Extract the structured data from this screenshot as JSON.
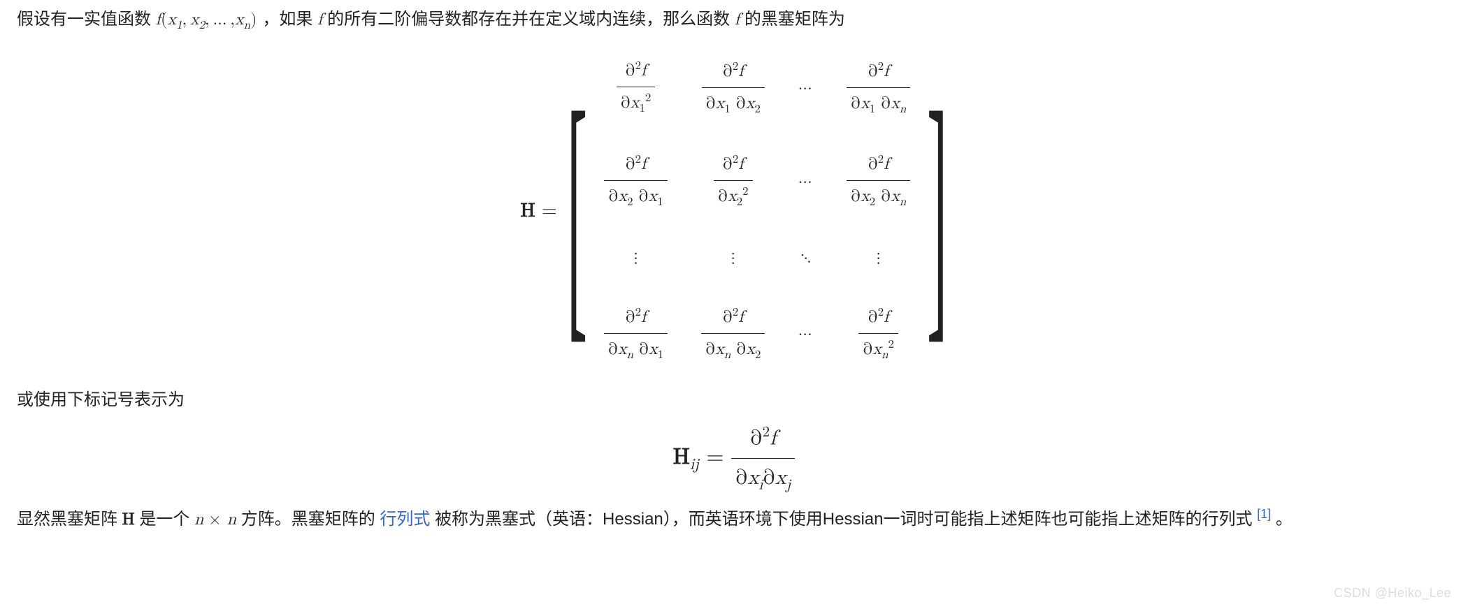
{
  "para1": {
    "t1": "假设有一实值函数",
    "fexpr_f": "f",
    "fexpr_open": "(",
    "fexpr_x": "x",
    "fexpr_sub1": "1",
    "fexpr_comma": ", ",
    "fexpr_sub2": "2",
    "fexpr_dots": ", … ,",
    "fexpr_subn": "n",
    "fexpr_close": ")",
    "t2": "，如果 ",
    "f_alone": "f",
    "t3": " 的所有二阶偏导数都存在并在定义域内连续，那么函数",
    "t4": " 的黑塞矩阵为"
  },
  "matrix": {
    "H": "H",
    "eq": " = ",
    "lbr": "[",
    "rbr": "]",
    "d2f": "∂",
    "f": "f",
    "x": "x",
    "two": "2",
    "one": "1",
    "n": "n",
    "cdots": "⋯",
    "vdots": "⋮",
    "ddots": "⋱"
  },
  "para2": "或使用下标记号表示为",
  "hij": {
    "H": "H",
    "ij": "ij",
    "eq": " = ",
    "d": "∂",
    "two": "2",
    "f": "f",
    "x": "x",
    "i": "i",
    "j": "j"
  },
  "para3": {
    "t1": "显然黑塞矩阵 ",
    "H": "H",
    "t2": " 是一个",
    "n": "n",
    "times": " × ",
    "t3": " 方阵。黑塞矩阵的",
    "link": "行列式",
    "t4": "被称为黑塞式（英语：Hessian），而英语环境下使用Hessian一词时可能指上述矩阵也可能指上述矩阵的行列式",
    "cite": "[1]",
    "t5": "。"
  },
  "watermark": "CSDN @Heiko_Lee"
}
